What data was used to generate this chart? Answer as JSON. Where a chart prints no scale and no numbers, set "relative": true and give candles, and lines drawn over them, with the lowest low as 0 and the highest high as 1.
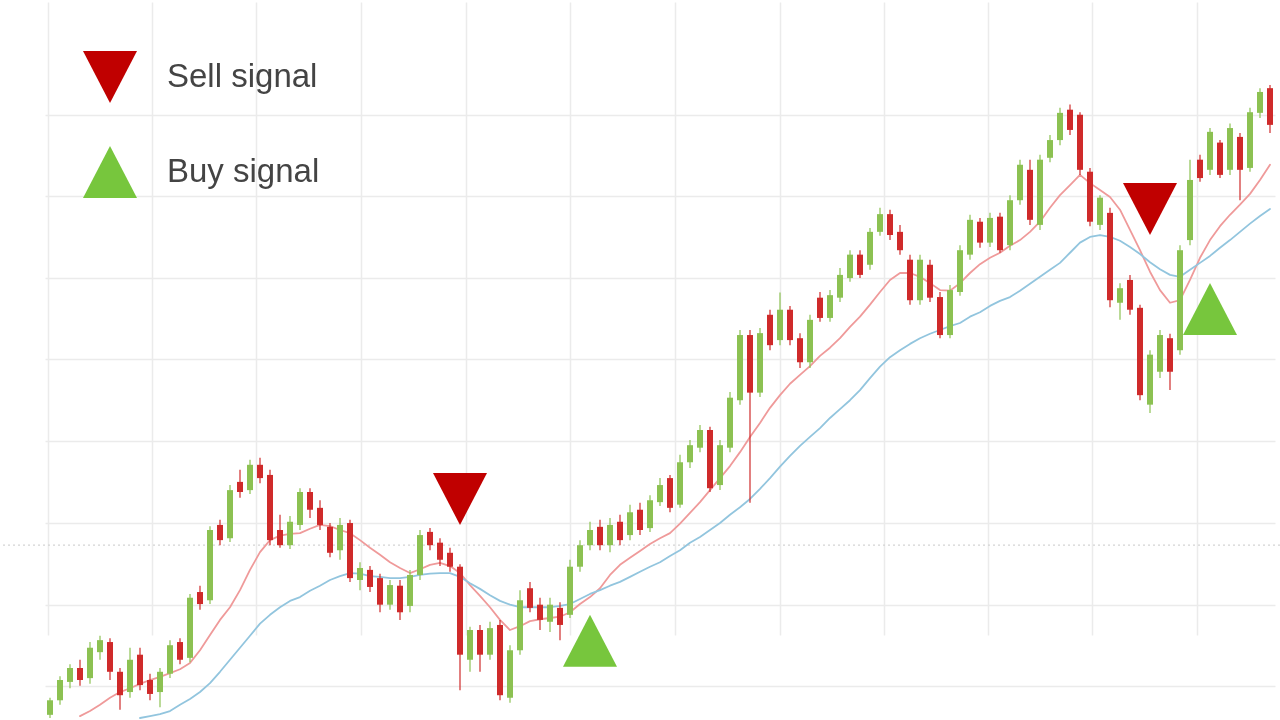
{
  "chart_data": {
    "type": "candlestick",
    "relative": true,
    "grid": true,
    "legend": "top left",
    "categories": [
      null,
      null,
      null,
      null,
      null,
      null,
      null,
      null,
      null,
      null,
      null,
      null,
      null,
      null,
      null,
      null,
      null,
      null,
      null,
      null,
      null,
      null,
      null,
      null,
      null,
      null,
      null,
      null,
      null,
      null,
      null,
      null,
      null,
      null,
      null,
      null,
      null,
      null,
      null,
      null,
      null,
      null,
      null,
      null,
      null,
      null,
      null,
      null,
      null,
      null,
      null,
      null,
      null,
      null,
      null,
      null,
      null,
      null,
      null,
      null,
      null,
      null,
      null,
      null,
      null,
      null,
      null,
      null,
      null,
      null,
      null,
      null,
      null,
      null,
      null,
      null,
      null,
      null,
      null,
      null,
      null,
      null,
      null,
      null,
      null,
      null,
      null,
      null,
      null,
      null,
      null,
      null,
      null,
      null,
      null,
      null,
      null,
      null,
      null,
      null,
      null,
      null,
      null,
      null,
      null,
      null,
      null,
      null,
      null,
      null,
      null,
      null,
      null,
      null,
      null,
      null,
      null,
      null,
      null,
      null,
      null,
      null,
      null
    ],
    "ohlc": [
      [
        0.005,
        0.032,
        0,
        0.028
      ],
      [
        0.028,
        0.066,
        0.021,
        0.06
      ],
      [
        0.057,
        0.085,
        0.047,
        0.079
      ],
      [
        0.079,
        0.092,
        0.051,
        0.06
      ],
      [
        0.063,
        0.12,
        0.054,
        0.111
      ],
      [
        0.104,
        0.13,
        0.092,
        0.123
      ],
      [
        0.12,
        0.126,
        0.06,
        0.073
      ],
      [
        0.073,
        0.079,
        0.013,
        0.036
      ],
      [
        0.041,
        0.111,
        0.032,
        0.092
      ],
      [
        0.1,
        0.111,
        0.044,
        0.052
      ],
      [
        0.06,
        0.07,
        0.028,
        0.038
      ],
      [
        0.041,
        0.079,
        0.017,
        0.073
      ],
      [
        0.07,
        0.123,
        0.063,
        0.115
      ],
      [
        0.12,
        0.126,
        0.085,
        0.092
      ],
      [
        0.095,
        0.196,
        0.088,
        0.19
      ],
      [
        0.199,
        0.209,
        0.171,
        0.18
      ],
      [
        0.186,
        0.303,
        0.18,
        0.297
      ],
      [
        0.305,
        0.313,
        0.273,
        0.281
      ],
      [
        0.284,
        0.368,
        0.278,
        0.36
      ],
      [
        0.373,
        0.392,
        0.348,
        0.357
      ],
      [
        0.36,
        0.408,
        0.354,
        0.4
      ],
      [
        0.4,
        0.411,
        0.371,
        0.379
      ],
      [
        0.384,
        0.392,
        0.273,
        0.281
      ],
      [
        0.297,
        0.321,
        0.269,
        0.273
      ],
      [
        0.273,
        0.319,
        0.267,
        0.31
      ],
      [
        0.305,
        0.363,
        0.297,
        0.357
      ],
      [
        0.357,
        0.363,
        0.316,
        0.329
      ],
      [
        0.332,
        0.344,
        0.297,
        0.305
      ],
      [
        0.302,
        0.308,
        0.254,
        0.261
      ],
      [
        0.265,
        0.316,
        0.25,
        0.305
      ],
      [
        0.308,
        0.313,
        0.215,
        0.221
      ],
      [
        0.218,
        0.246,
        0.202,
        0.237
      ],
      [
        0.234,
        0.24,
        0.199,
        0.207
      ],
      [
        0.221,
        0.228,
        0.167,
        0.179
      ],
      [
        0.179,
        0.218,
        0.171,
        0.21
      ],
      [
        0.209,
        0.218,
        0.155,
        0.167
      ],
      [
        0.177,
        0.234,
        0.167,
        0.226
      ],
      [
        0.226,
        0.297,
        0.218,
        0.289
      ],
      [
        0.294,
        0.3,
        0.265,
        0.273
      ],
      [
        0.277,
        0.284,
        0.24,
        0.25
      ],
      [
        0.261,
        0.269,
        0.231,
        0.239
      ],
      [
        0.239,
        0.243,
        0.044,
        0.1
      ],
      [
        0.092,
        0.144,
        0.073,
        0.139
      ],
      [
        0.139,
        0.147,
        0.073,
        0.1
      ],
      [
        0.1,
        0.152,
        0.092,
        0.142
      ],
      [
        0.147,
        0.155,
        0.028,
        0.036
      ],
      [
        0.032,
        0.115,
        0.024,
        0.107
      ],
      [
        0.107,
        0.202,
        0.1,
        0.186
      ],
      [
        0.205,
        0.215,
        0.167,
        0.174
      ],
      [
        0.179,
        0.19,
        0.139,
        0.155
      ],
      [
        0.152,
        0.19,
        0.136,
        0.179
      ],
      [
        0.174,
        0.183,
        0.123,
        0.147
      ],
      [
        0.163,
        0.25,
        0.158,
        0.239
      ],
      [
        0.239,
        0.281,
        0.231,
        0.273
      ],
      [
        0.273,
        0.31,
        0.265,
        0.297
      ],
      [
        0.302,
        0.313,
        0.265,
        0.273
      ],
      [
        0.273,
        0.316,
        0.262,
        0.305
      ],
      [
        0.31,
        0.321,
        0.273,
        0.281
      ],
      [
        0.289,
        0.337,
        0.281,
        0.325
      ],
      [
        0.329,
        0.34,
        0.289,
        0.297
      ],
      [
        0.3,
        0.352,
        0.294,
        0.344
      ],
      [
        0.341,
        0.379,
        0.335,
        0.368
      ],
      [
        0.379,
        0.384,
        0.325,
        0.332
      ],
      [
        0.337,
        0.416,
        0.332,
        0.404
      ],
      [
        0.404,
        0.439,
        0.395,
        0.431
      ],
      [
        0.427,
        0.463,
        0.42,
        0.455
      ],
      [
        0.455,
        0.46,
        0.357,
        0.363
      ],
      [
        0.368,
        0.439,
        0.36,
        0.431
      ],
      [
        0.427,
        0.515,
        0.42,
        0.506
      ],
      [
        0.502,
        0.613,
        0.495,
        0.605
      ],
      [
        0.605,
        0.613,
        0.34,
        0.514
      ],
      [
        0.514,
        0.616,
        0.507,
        0.608
      ],
      [
        0.637,
        0.645,
        0.581,
        0.589
      ],
      [
        0.597,
        0.672,
        0.589,
        0.645
      ],
      [
        0.645,
        0.651,
        0.589,
        0.597
      ],
      [
        0.6,
        0.608,
        0.553,
        0.562
      ],
      [
        0.562,
        0.637,
        0.553,
        0.629
      ],
      [
        0.664,
        0.673,
        0.626,
        0.632
      ],
      [
        0.632,
        0.676,
        0.626,
        0.668
      ],
      [
        0.664,
        0.711,
        0.657,
        0.7
      ],
      [
        0.695,
        0.739,
        0.689,
        0.732
      ],
      [
        0.732,
        0.739,
        0.695,
        0.7
      ],
      [
        0.716,
        0.774,
        0.708,
        0.768
      ],
      [
        0.768,
        0.806,
        0.762,
        0.796
      ],
      [
        0.796,
        0.803,
        0.755,
        0.763
      ],
      [
        0.768,
        0.779,
        0.732,
        0.739
      ],
      [
        0.724,
        0.732,
        0.653,
        0.66
      ],
      [
        0.66,
        0.732,
        0.653,
        0.724
      ],
      [
        0.716,
        0.724,
        0.657,
        0.664
      ],
      [
        0.665,
        0.673,
        0.6,
        0.605
      ],
      [
        0.605,
        0.684,
        0.6,
        0.676
      ],
      [
        0.673,
        0.747,
        0.667,
        0.739
      ],
      [
        0.732,
        0.795,
        0.724,
        0.787
      ],
      [
        0.784,
        0.79,
        0.743,
        0.751
      ],
      [
        0.751,
        0.798,
        0.744,
        0.79
      ],
      [
        0.792,
        0.798,
        0.735,
        0.739
      ],
      [
        0.747,
        0.826,
        0.739,
        0.818
      ],
      [
        0.818,
        0.882,
        0.811,
        0.874
      ],
      [
        0.866,
        0.882,
        0.779,
        0.787
      ],
      [
        0.779,
        0.89,
        0.771,
        0.882
      ],
      [
        0.885,
        0.921,
        0.878,
        0.913
      ],
      [
        0.913,
        0.964,
        0.905,
        0.956
      ],
      [
        0.961,
        0.969,
        0.921,
        0.929
      ],
      [
        0.953,
        0.957,
        0.858,
        0.866
      ],
      [
        0.863,
        0.869,
        0.777,
        0.784
      ],
      [
        0.779,
        0.826,
        0.771,
        0.822
      ],
      [
        0.798,
        0.806,
        0.649,
        0.66
      ],
      [
        0.656,
        0.687,
        0.629,
        0.679
      ],
      [
        0.692,
        0.7,
        0.637,
        0.645
      ],
      [
        0.648,
        0.653,
        0.502,
        0.51
      ],
      [
        0.495,
        0.581,
        0.482,
        0.574
      ],
      [
        0.547,
        0.613,
        0.537,
        0.605
      ],
      [
        0.6,
        0.607,
        0.518,
        0.547
      ],
      [
        0.581,
        0.747,
        0.574,
        0.739
      ],
      [
        0.755,
        0.882,
        0.747,
        0.85
      ],
      [
        0.882,
        0.89,
        0.847,
        0.853
      ],
      [
        0.866,
        0.932,
        0.858,
        0.926
      ],
      [
        0.909,
        0.913,
        0.853,
        0.858
      ],
      [
        0.866,
        0.939,
        0.858,
        0.932
      ],
      [
        0.918,
        0.924,
        0.818,
        0.866
      ],
      [
        0.869,
        0.964,
        0.863,
        0.957
      ],
      [
        0.956,
        0.995,
        0.948,
        0.989
      ],
      [
        0.995,
        1,
        0.924,
        0.937
      ]
    ],
    "colors": [
      "#8cc152",
      "#8cc152",
      "#8cc152",
      "#cf2a2a",
      "#8cc152",
      "#8cc152",
      "#cf2a2a",
      "#cf2a2a",
      "#8cc152",
      "#cf2a2a",
      "#cf2a2a",
      "#8cc152",
      "#8cc152",
      "#cf2a2a",
      "#8cc152",
      "#cf2a2a",
      "#8cc152",
      "#cf2a2a",
      "#8cc152",
      "#cf2a2a",
      "#8cc152",
      "#cf2a2a",
      "#cf2a2a",
      "#cf2a2a",
      "#8cc152",
      "#8cc152",
      "#cf2a2a",
      "#cf2a2a",
      "#cf2a2a",
      "#8cc152",
      "#cf2a2a",
      "#8cc152",
      "#cf2a2a",
      "#cf2a2a",
      "#8cc152",
      "#cf2a2a",
      "#8cc152",
      "#8cc152",
      "#cf2a2a",
      "#cf2a2a",
      "#cf2a2a",
      "#cf2a2a",
      "#8cc152",
      "#cf2a2a",
      "#8cc152",
      "#cf2a2a",
      "#8cc152",
      "#8cc152",
      "#cf2a2a",
      "#cf2a2a",
      "#8cc152",
      "#cf2a2a",
      "#8cc152",
      "#8cc152",
      "#8cc152",
      "#cf2a2a",
      "#8cc152",
      "#cf2a2a",
      "#8cc152",
      "#cf2a2a",
      "#8cc152",
      "#8cc152",
      "#cf2a2a",
      "#8cc152",
      "#8cc152",
      "#8cc152",
      "#cf2a2a",
      "#8cc152",
      "#8cc152",
      "#8cc152",
      "#cf2a2a",
      "#8cc152",
      "#cf2a2a",
      "#8cc152",
      "#cf2a2a",
      "#cf2a2a",
      "#8cc152",
      "#cf2a2a",
      "#8cc152",
      "#8cc152",
      "#8cc152",
      "#cf2a2a",
      "#8cc152",
      "#8cc152",
      "#cf2a2a",
      "#cf2a2a",
      "#cf2a2a",
      "#8cc152",
      "#cf2a2a",
      "#cf2a2a",
      "#8cc152",
      "#8cc152",
      "#8cc152",
      "#cf2a2a",
      "#8cc152",
      "#cf2a2a",
      "#8cc152",
      "#8cc152",
      "#cf2a2a",
      "#8cc152",
      "#8cc152",
      "#8cc152",
      "#cf2a2a",
      "#cf2a2a",
      "#cf2a2a",
      "#8cc152",
      "#cf2a2a",
      "#8cc152",
      "#cf2a2a",
      "#cf2a2a",
      "#8cc152",
      "#8cc152",
      "#cf2a2a",
      "#8cc152",
      "#8cc152",
      "#cf2a2a",
      "#8cc152",
      "#cf2a2a",
      "#8cc152",
      "#cf2a2a",
      "#8cc152",
      "#8cc152",
      "#cf2a2a"
    ],
    "series": [
      {
        "type": "line",
        "color": "#ef9a9a",
        "values": [
          null,
          null,
          null,
          0.003,
          0.011,
          0.021,
          0.032,
          0.041,
          0.047,
          0.054,
          0.06,
          0.065,
          0.071,
          0.077,
          0.087,
          0.107,
          0.131,
          0.155,
          0.175,
          0.202,
          0.234,
          0.262,
          0.281,
          0.288,
          0.291,
          0.292,
          0.299,
          0.305,
          0.303,
          0.297,
          0.292,
          0.281,
          0.269,
          0.258,
          0.246,
          0.237,
          0.229,
          0.235,
          0.242,
          0.245,
          0.24,
          0.229,
          0.21,
          0.193,
          0.175,
          0.155,
          0.139,
          0.145,
          0.153,
          0.156,
          0.158,
          0.16,
          0.167,
          0.18,
          0.191,
          0.205,
          0.226,
          0.242,
          0.253,
          0.264,
          0.275,
          0.284,
          0.292,
          0.307,
          0.324,
          0.341,
          0.36,
          0.379,
          0.398,
          0.42,
          0.444,
          0.466,
          0.49,
          0.51,
          0.528,
          0.542,
          0.556,
          0.572,
          0.585,
          0.6,
          0.618,
          0.634,
          0.653,
          0.673,
          0.692,
          0.703,
          0.703,
          0.697,
          0.687,
          0.676,
          0.675,
          0.687,
          0.703,
          0.717,
          0.727,
          0.735,
          0.746,
          0.755,
          0.768,
          0.784,
          0.806,
          0.826,
          0.842,
          0.858,
          0.845,
          0.834,
          0.823,
          0.803,
          0.771,
          0.739,
          0.705,
          0.676,
          0.656,
          0.66,
          0.692,
          0.727,
          0.755,
          0.777,
          0.795,
          0.811,
          0.828,
          0.85,
          0.874
        ]
      },
      {
        "type": "line",
        "color": "#92c5de",
        "values": [
          null,
          null,
          null,
          null,
          null,
          null,
          null,
          null,
          null,
          0,
          0.003,
          0.006,
          0.011,
          0.021,
          0.03,
          0.041,
          0.055,
          0.073,
          0.092,
          0.111,
          0.13,
          0.149,
          0.163,
          0.175,
          0.185,
          0.191,
          0.201,
          0.209,
          0.218,
          0.224,
          0.229,
          0.228,
          0.224,
          0.223,
          0.221,
          0.221,
          0.223,
          0.226,
          0.228,
          0.229,
          0.229,
          0.223,
          0.213,
          0.204,
          0.194,
          0.185,
          0.179,
          0.175,
          0.175,
          0.175,
          0.175,
          0.177,
          0.18,
          0.188,
          0.196,
          0.202,
          0.209,
          0.215,
          0.223,
          0.231,
          0.239,
          0.246,
          0.256,
          0.265,
          0.277,
          0.286,
          0.297,
          0.308,
          0.321,
          0.333,
          0.346,
          0.362,
          0.379,
          0.397,
          0.414,
          0.43,
          0.444,
          0.458,
          0.474,
          0.488,
          0.502,
          0.518,
          0.537,
          0.555,
          0.57,
          0.581,
          0.591,
          0.6,
          0.607,
          0.613,
          0.619,
          0.624,
          0.634,
          0.641,
          0.651,
          0.659,
          0.665,
          0.675,
          0.686,
          0.697,
          0.708,
          0.719,
          0.735,
          0.751,
          0.76,
          0.763,
          0.76,
          0.754,
          0.744,
          0.733,
          0.72,
          0.709,
          0.7,
          0.697,
          0.708,
          0.719,
          0.73,
          0.743,
          0.755,
          0.768,
          0.781,
          0.793,
          0.804
        ]
      },
      {
        "type": "scatter",
        "name": "Sell signal",
        "color": "#c00000",
        "marker": "triangle",
        "values": [
          null,
          null,
          null,
          null,
          null,
          null,
          null,
          null,
          null,
          null,
          null,
          null,
          null,
          null,
          null,
          null,
          null,
          null,
          null,
          null,
          null,
          null,
          null,
          null,
          null,
          null,
          null,
          null,
          null,
          null,
          null,
          null,
          null,
          null,
          null,
          null,
          null,
          null,
          null,
          null,
          null,
          0.346,
          null,
          null,
          null,
          null,
          null,
          null,
          null,
          null,
          null,
          null,
          null,
          null,
          null,
          null,
          null,
          null,
          null,
          null,
          null,
          null,
          null,
          null,
          null,
          null,
          null,
          null,
          null,
          null,
          null,
          null,
          null,
          null,
          null,
          null,
          null,
          null,
          null,
          null,
          null,
          null,
          null,
          null,
          null,
          null,
          null,
          null,
          null,
          null,
          null,
          null,
          null,
          null,
          null,
          null,
          null,
          null,
          null,
          null,
          null,
          null,
          null,
          null,
          null,
          null,
          null,
          null,
          null,
          null,
          0.804,
          null,
          null,
          null,
          null,
          null,
          null,
          null,
          null,
          null,
          null,
          null,
          null
        ]
      },
      {
        "type": "scatter",
        "name": "Buy signal",
        "color": "#77c63d",
        "marker": "triangle",
        "values": [
          null,
          null,
          null,
          null,
          null,
          null,
          null,
          null,
          null,
          null,
          null,
          null,
          null,
          null,
          null,
          null,
          null,
          null,
          null,
          null,
          null,
          null,
          null,
          null,
          null,
          null,
          null,
          null,
          null,
          null,
          null,
          null,
          null,
          null,
          null,
          null,
          null,
          null,
          null,
          null,
          null,
          null,
          null,
          null,
          null,
          null,
          null,
          null,
          null,
          null,
          null,
          null,
          null,
          null,
          0.122,
          null,
          null,
          null,
          null,
          null,
          null,
          null,
          null,
          null,
          null,
          null,
          null,
          null,
          null,
          null,
          null,
          null,
          null,
          null,
          null,
          null,
          null,
          null,
          null,
          null,
          null,
          null,
          null,
          null,
          null,
          null,
          null,
          null,
          null,
          null,
          null,
          null,
          null,
          null,
          null,
          null,
          null,
          null,
          null,
          null,
          null,
          null,
          null,
          null,
          null,
          null,
          null,
          null,
          null,
          null,
          null,
          null,
          null,
          null,
          null,
          null,
          0.646,
          null,
          null,
          null,
          null,
          null,
          null
        ]
      }
    ],
    "ref_lines": [
      {
        "axis": "y",
        "value": 0.273,
        "line_style": "dotted",
        "color": "#d4d4d4"
      }
    ]
  }
}
